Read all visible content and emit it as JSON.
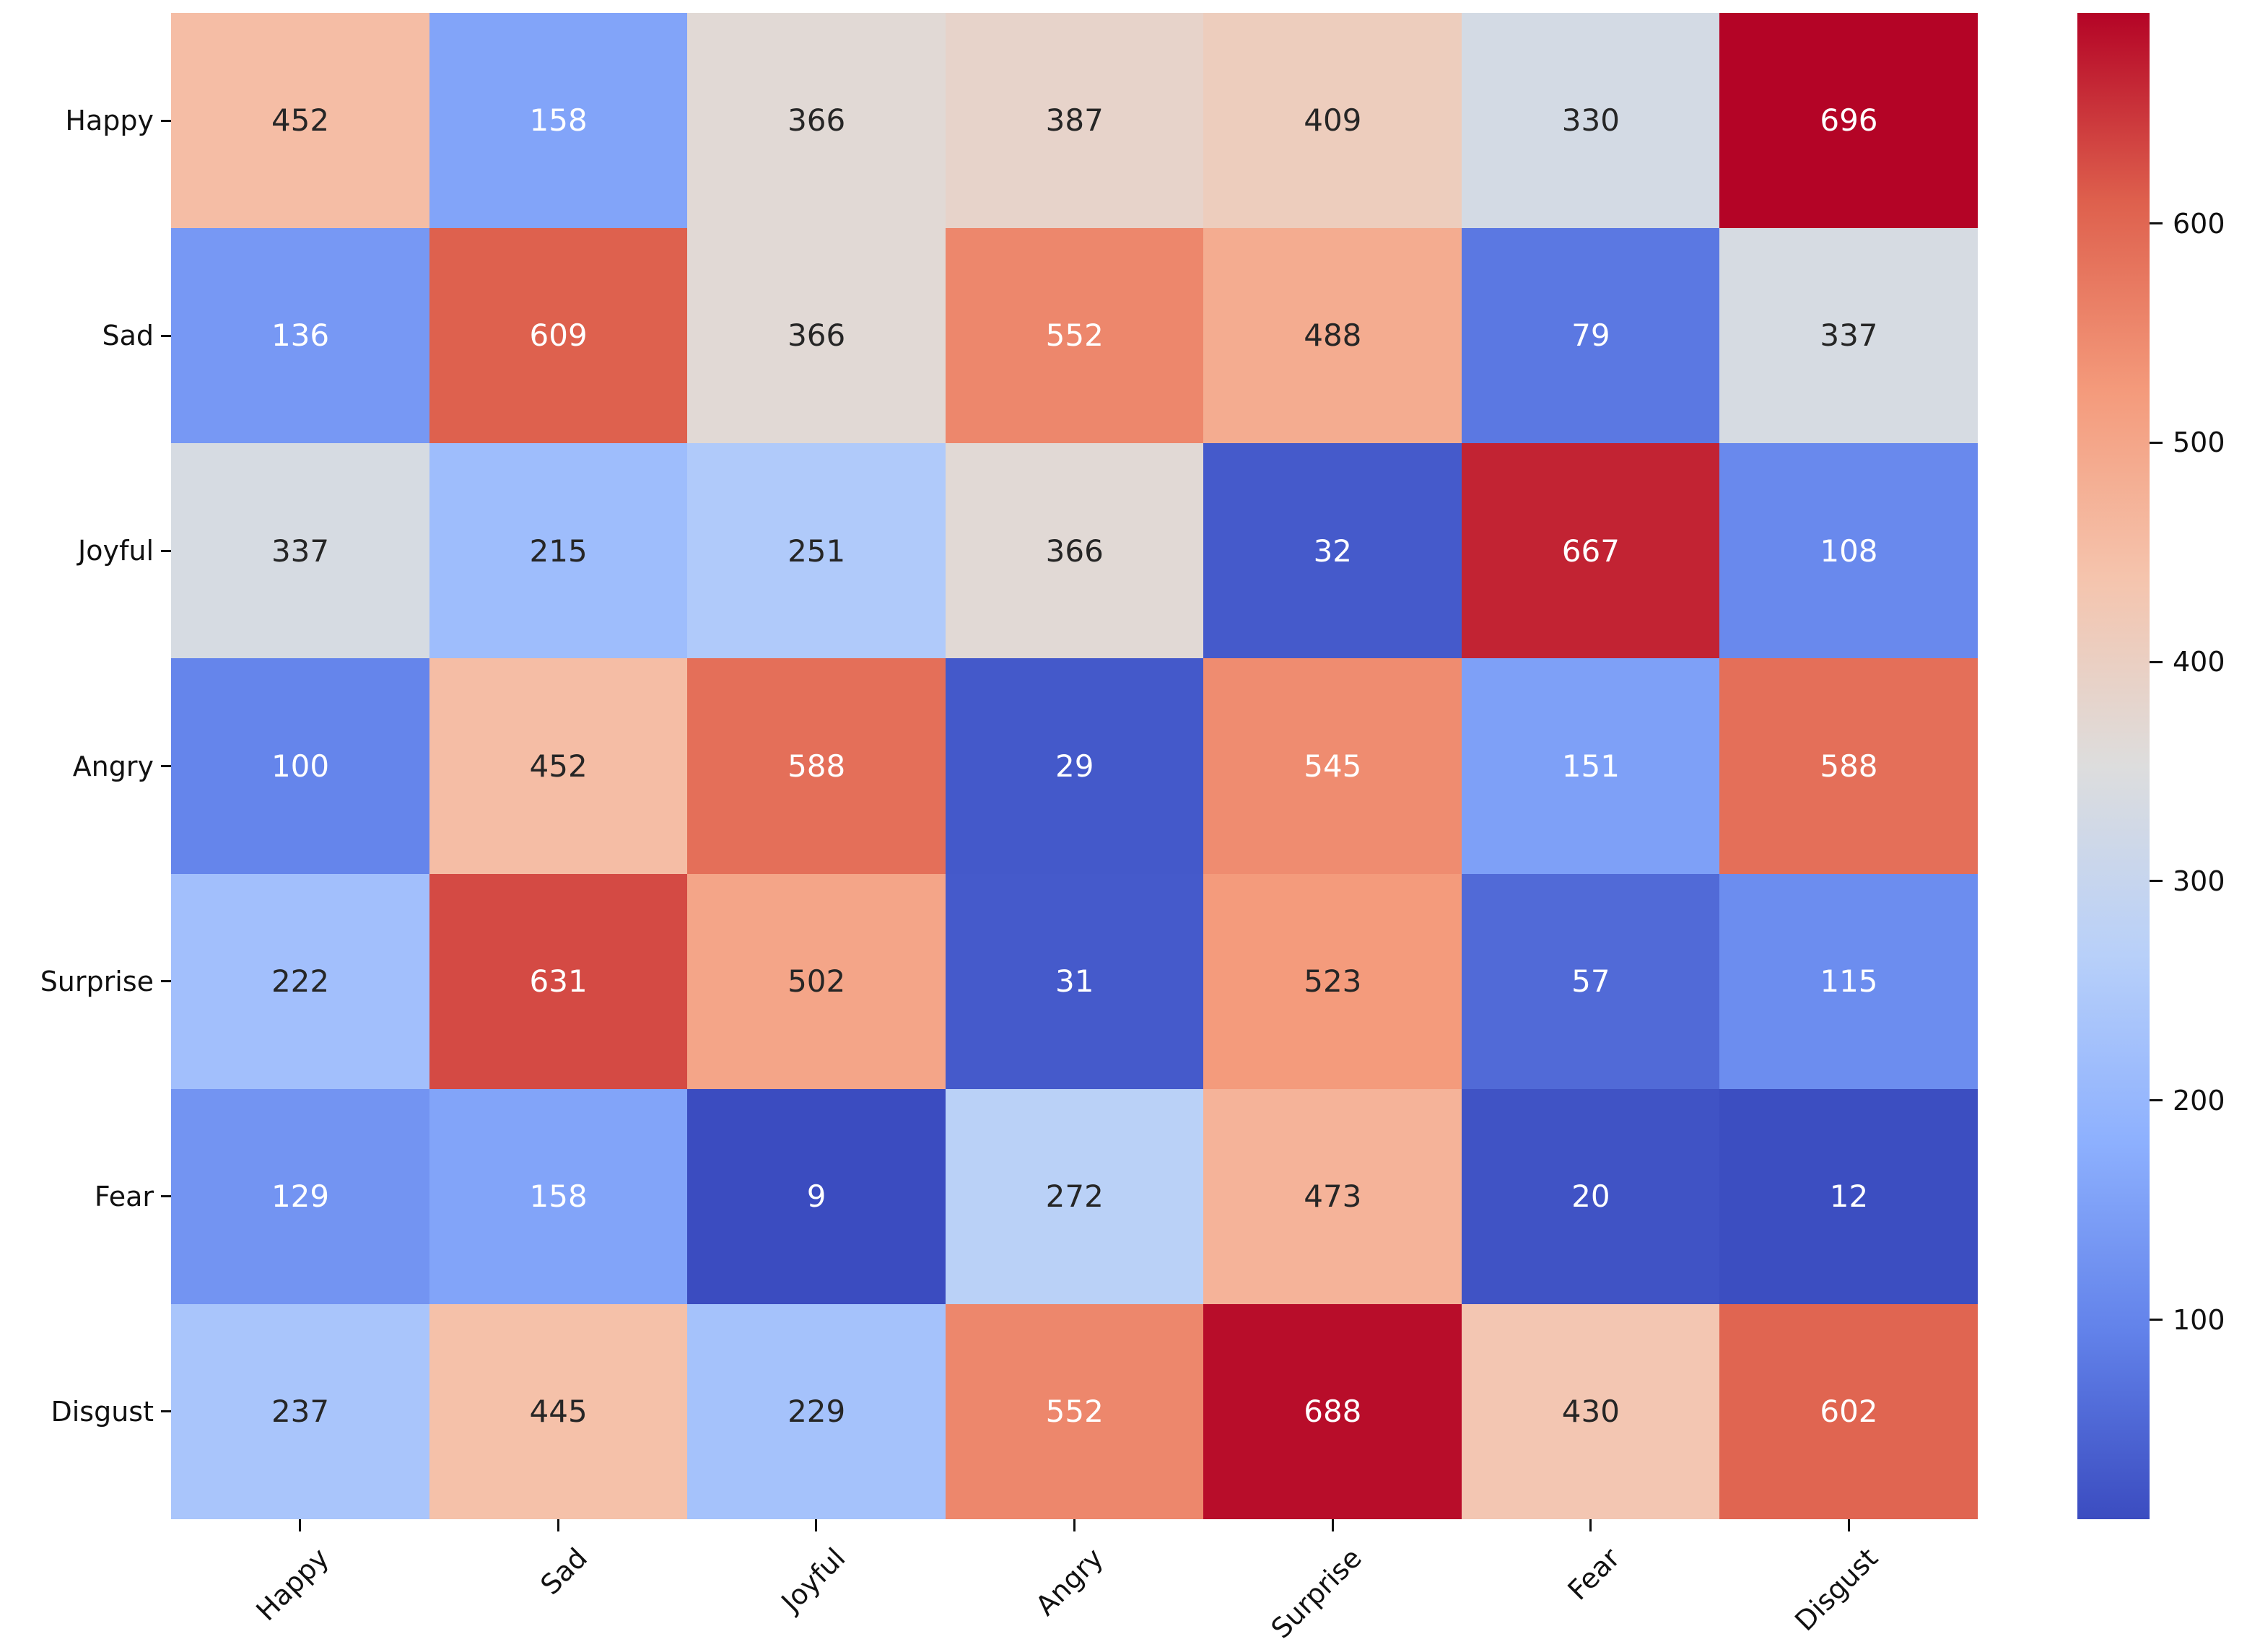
{
  "chart_data": {
    "type": "heatmap",
    "x_labels": [
      "Happy",
      "Sad",
      "Joyful",
      "Angry",
      "Surprise",
      "Fear",
      "Disgust"
    ],
    "y_labels": [
      "Happy",
      "Sad",
      "Joyful",
      "Angry",
      "Surprise",
      "Fear",
      "Disgust"
    ],
    "matrix": [
      [
        452,
        158,
        366,
        387,
        409,
        330,
        696
      ],
      [
        136,
        609,
        366,
        552,
        488,
        79,
        337
      ],
      [
        337,
        215,
        251,
        366,
        32,
        667,
        108
      ],
      [
        100,
        452,
        588,
        29,
        545,
        151,
        588
      ],
      [
        222,
        631,
        502,
        31,
        523,
        57,
        115
      ],
      [
        129,
        158,
        9,
        272,
        473,
        20,
        12
      ],
      [
        237,
        445,
        229,
        552,
        688,
        430,
        602
      ]
    ],
    "vmin": 9,
    "vmax": 696,
    "colormap": "coolwarm",
    "colorbar_ticks": [
      600,
      500,
      400,
      300,
      200,
      100
    ],
    "annotations": true,
    "colorbar_position": "right",
    "grid": false,
    "x_tick_rotation_deg": 45
  },
  "colors": {
    "coolwarm_anchors": [
      [
        59,
        76,
        192
      ],
      [
        98,
        130,
        234
      ],
      [
        141,
        176,
        254
      ],
      [
        184,
        208,
        249
      ],
      [
        221,
        221,
        221
      ],
      [
        245,
        196,
        173
      ],
      [
        244,
        154,
        123
      ],
      [
        222,
        96,
        77
      ],
      [
        180,
        4,
        38
      ]
    ],
    "dark_text": "#262626",
    "light_text": "#ffffff",
    "axis_text": "#111111",
    "background": "#ffffff"
  }
}
